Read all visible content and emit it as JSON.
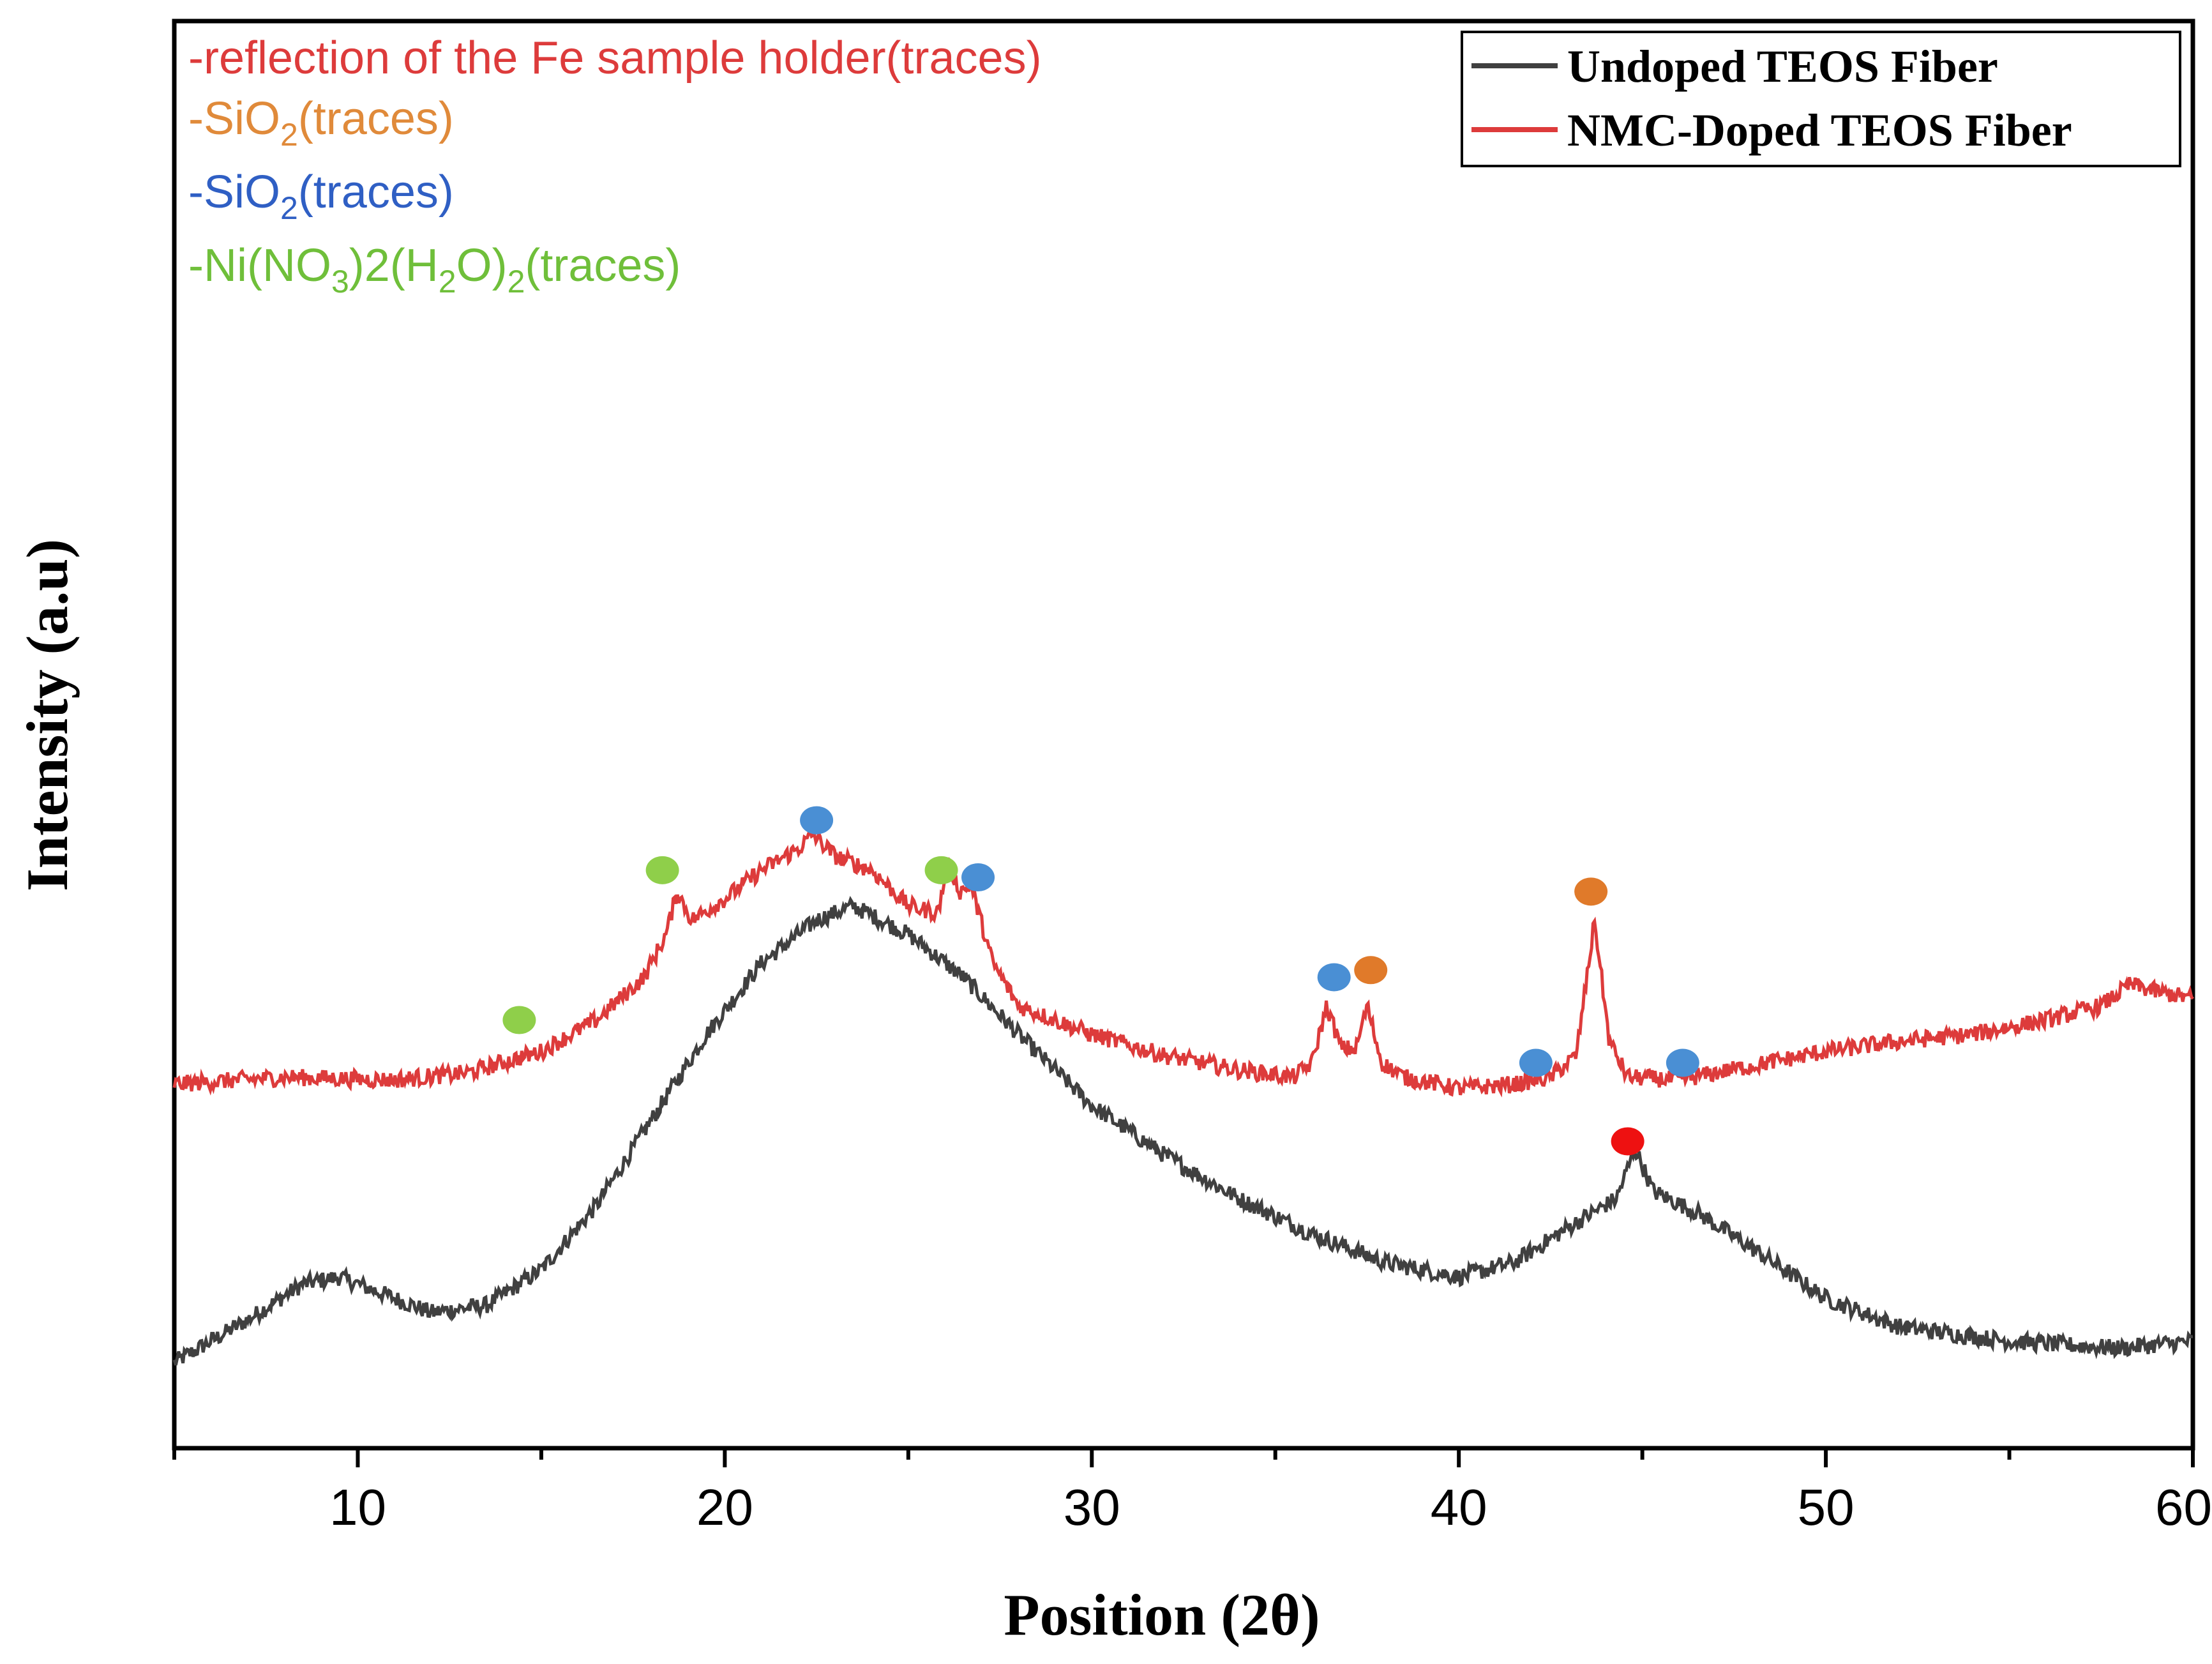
{
  "chart_data": {
    "type": "line",
    "title": "",
    "xlabel": "Position (2θ)",
    "ylabel": "Intensity (a.u)",
    "xlim": [
      5,
      60
    ],
    "ylim": [
      0,
      1
    ],
    "x_ticks": [
      10,
      20,
      30,
      40,
      50,
      60
    ],
    "y_ticks": [],
    "grid": false,
    "legend_position": "top-right",
    "series": [
      {
        "name": "Undoped TEOS Fiber",
        "color": "#404040",
        "points": [
          [
            5,
            0.06
          ],
          [
            7,
            0.09
          ],
          [
            8.5,
            0.115
          ],
          [
            9.5,
            0.12
          ],
          [
            10.5,
            0.11
          ],
          [
            12,
            0.095
          ],
          [
            13.5,
            0.1
          ],
          [
            15,
            0.125
          ],
          [
            16.5,
            0.17
          ],
          [
            18,
            0.23
          ],
          [
            19.5,
            0.29
          ],
          [
            21,
            0.34
          ],
          [
            22.5,
            0.37
          ],
          [
            23.5,
            0.38
          ],
          [
            25,
            0.36
          ],
          [
            26.5,
            0.33
          ],
          [
            28,
            0.29
          ],
          [
            30,
            0.24
          ],
          [
            32,
            0.205
          ],
          [
            34,
            0.175
          ],
          [
            36,
            0.15
          ],
          [
            38,
            0.13
          ],
          [
            40,
            0.12
          ],
          [
            41.5,
            0.13
          ],
          [
            43,
            0.155
          ],
          [
            44.3,
            0.175
          ],
          [
            44.8,
            0.21
          ],
          [
            45.3,
            0.18
          ],
          [
            46.5,
            0.165
          ],
          [
            48,
            0.14
          ],
          [
            50,
            0.105
          ],
          [
            52,
            0.085
          ],
          [
            55,
            0.075
          ],
          [
            58,
            0.07
          ],
          [
            60,
            0.075
          ]
        ]
      },
      {
        "name": "NMC-Doped TEOS Fiber",
        "color": "#dd3b3b",
        "points": [
          [
            5,
            0.255
          ],
          [
            8,
            0.26
          ],
          [
            11,
            0.258
          ],
          [
            13,
            0.263
          ],
          [
            15,
            0.278
          ],
          [
            16.5,
            0.3
          ],
          [
            17.8,
            0.33
          ],
          [
            18.4,
            0.36
          ],
          [
            18.7,
            0.39
          ],
          [
            19.1,
            0.37
          ],
          [
            20,
            0.385
          ],
          [
            21,
            0.405
          ],
          [
            22,
            0.42
          ],
          [
            22.4,
            0.43
          ],
          [
            23,
            0.415
          ],
          [
            24,
            0.405
          ],
          [
            25,
            0.38
          ],
          [
            25.8,
            0.375
          ],
          [
            26.1,
            0.41
          ],
          [
            26.4,
            0.39
          ],
          [
            26.7,
            0.395
          ],
          [
            27.3,
            0.34
          ],
          [
            28,
            0.31
          ],
          [
            30,
            0.29
          ],
          [
            32,
            0.275
          ],
          [
            34,
            0.265
          ],
          [
            35.5,
            0.26
          ],
          [
            36,
            0.27
          ],
          [
            36.4,
            0.31
          ],
          [
            36.8,
            0.28
          ],
          [
            37.2,
            0.28
          ],
          [
            37.5,
            0.31
          ],
          [
            37.9,
            0.27
          ],
          [
            38.5,
            0.26
          ],
          [
            40,
            0.252
          ],
          [
            41.5,
            0.255
          ],
          [
            42.5,
            0.26
          ],
          [
            43.2,
            0.275
          ],
          [
            43.7,
            0.37
          ],
          [
            44.1,
            0.285
          ],
          [
            44.6,
            0.26
          ],
          [
            46,
            0.258
          ],
          [
            48,
            0.268
          ],
          [
            50,
            0.278
          ],
          [
            52,
            0.285
          ],
          [
            54,
            0.29
          ],
          [
            56,
            0.3
          ],
          [
            57.5,
            0.31
          ],
          [
            58.3,
            0.325
          ],
          [
            59,
            0.32
          ],
          [
            60,
            0.315
          ]
        ]
      }
    ],
    "legend_annotations": [
      {
        "color": "#dd3b3b",
        "parts": [
          [
            "-reflection of the Fe sample holder(traces)",
            ""
          ]
        ]
      },
      {
        "color": "#e08a3a",
        "parts": [
          [
            "-SiO",
            ""
          ],
          [
            "2",
            "sub"
          ],
          [
            "(traces)",
            ""
          ]
        ]
      },
      {
        "color": "#2f5fc4",
        "parts": [
          [
            "-SiO",
            ""
          ],
          [
            "2",
            "sub"
          ],
          [
            "(traces)",
            ""
          ]
        ]
      },
      {
        "color": "#6fbf3a",
        "parts": [
          [
            "-Ni(NO",
            ""
          ],
          [
            "3",
            "sub"
          ],
          [
            ")2(H",
            ""
          ],
          [
            "2",
            "sub"
          ],
          [
            "O)",
            ""
          ],
          [
            "2",
            "sub"
          ],
          [
            "(traces)",
            ""
          ]
        ]
      }
    ],
    "markers": [
      {
        "x": 14.4,
        "y": 0.3,
        "color": "#8fcf4a",
        "label": "Ni(NO3)2(H2O)2"
      },
      {
        "x": 18.3,
        "y": 0.405,
        "color": "#8fcf4a",
        "label": "Ni(NO3)2(H2O)2"
      },
      {
        "x": 25.9,
        "y": 0.405,
        "color": "#8fcf4a",
        "label": "Ni(NO3)2(H2O)2"
      },
      {
        "x": 22.5,
        "y": 0.44,
        "color": "#4a8fd4",
        "label": "SiO2"
      },
      {
        "x": 26.9,
        "y": 0.4,
        "color": "#4a8fd4",
        "label": "SiO2"
      },
      {
        "x": 36.6,
        "y": 0.33,
        "color": "#4a8fd4",
        "label": "SiO2"
      },
      {
        "x": 42.1,
        "y": 0.27,
        "color": "#4a8fd4",
        "label": "SiO2"
      },
      {
        "x": 46.1,
        "y": 0.27,
        "color": "#4a8fd4",
        "label": "SiO2"
      },
      {
        "x": 37.6,
        "y": 0.335,
        "color": "#e07a2a",
        "label": "SiO2"
      },
      {
        "x": 43.6,
        "y": 0.39,
        "color": "#e07a2a",
        "label": "SiO2"
      },
      {
        "x": 44.6,
        "y": 0.215,
        "color": "#ee1111",
        "label": "Fe sample holder"
      }
    ]
  }
}
